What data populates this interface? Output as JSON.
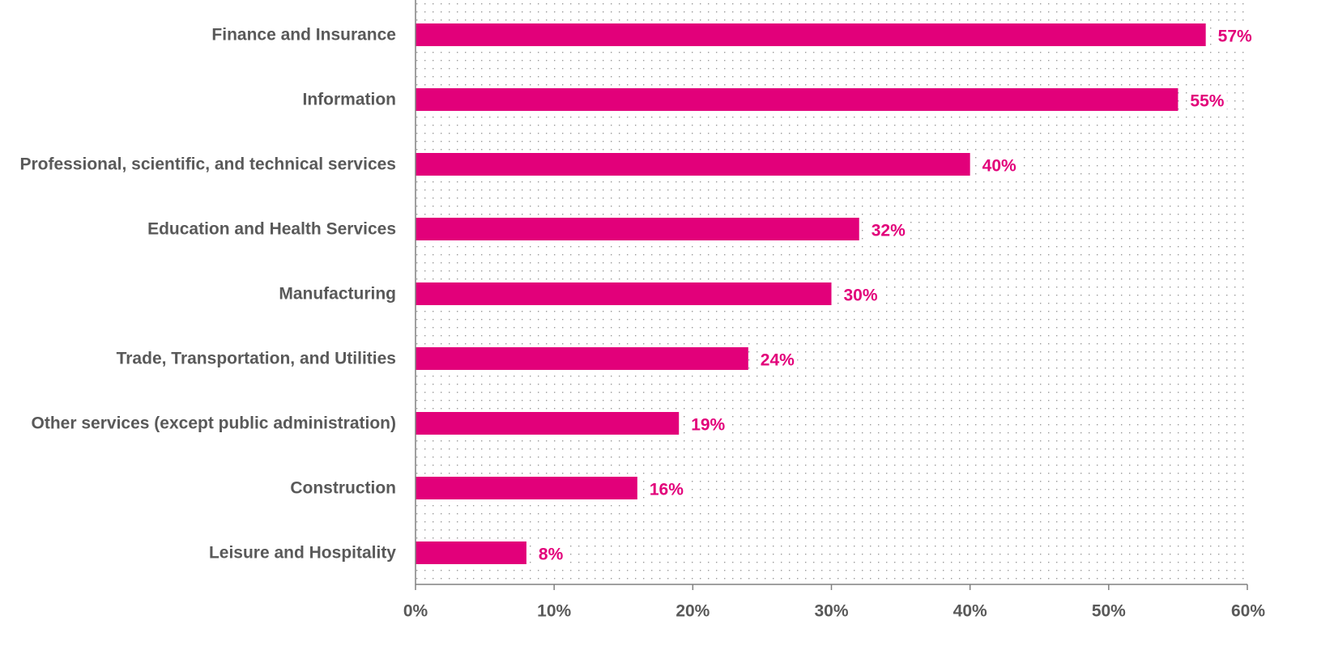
{
  "chart_data": {
    "type": "bar",
    "orientation": "horizontal",
    "categories": [
      "Finance and Insurance",
      "Information",
      "Professional, scientific, and technical services",
      "Education and Health Services",
      "Manufacturing",
      "Trade, Transportation, and Utilities",
      "Other services (except public administration)",
      "Construction",
      "Leisure and Hospitality"
    ],
    "values": [
      57,
      55,
      40,
      32,
      30,
      24,
      19,
      16,
      8
    ],
    "data_labels": [
      "57%",
      "55%",
      "40%",
      "32%",
      "30%",
      "24%",
      "19%",
      "16%",
      "8%"
    ],
    "xlim": [
      0,
      60
    ],
    "x_ticks": [
      0,
      10,
      20,
      30,
      40,
      50,
      60
    ],
    "x_tick_labels": [
      "0%",
      "10%",
      "20%",
      "30%",
      "40%",
      "50%",
      "60%"
    ],
    "title": "",
    "xlabel": "",
    "ylabel": "",
    "grid": false,
    "legend": "none",
    "background_pattern": "dotted",
    "colors": {
      "bar": "#E2007A",
      "data_label": "#E2007A",
      "category_label": "#595959",
      "tick_label": "#595959",
      "axis": "#808080",
      "pattern_dot": "#9a9a9a"
    }
  }
}
